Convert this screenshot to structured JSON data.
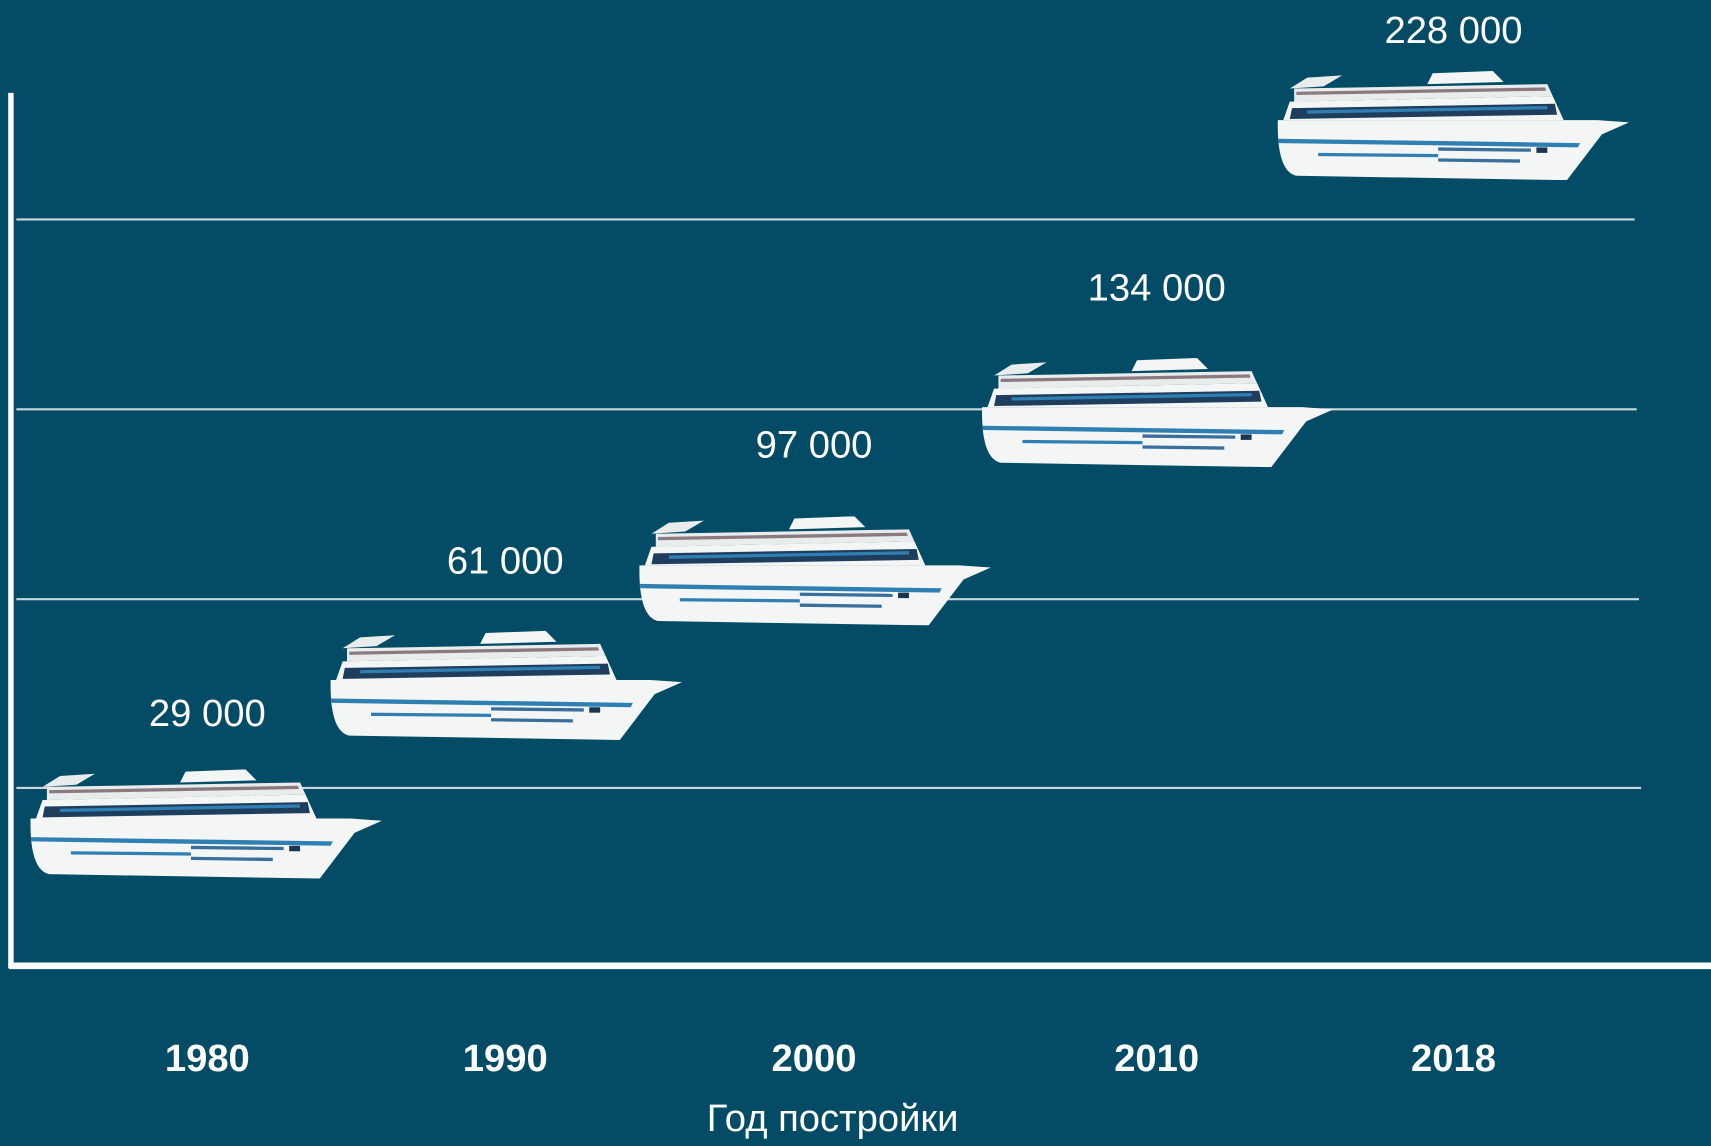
{
  "chart_data": {
    "type": "pictograph",
    "categories": [
      "1980",
      "1990",
      "2000",
      "2010",
      "2018"
    ],
    "values": [
      29000,
      61000,
      97000,
      134000,
      228000
    ],
    "value_labels": [
      "29 000",
      "61 000",
      "97 000",
      "134 000",
      "228 000"
    ],
    "x_label": "Год постройки",
    "color": "#f4f6f5",
    "grid": true
  }
}
